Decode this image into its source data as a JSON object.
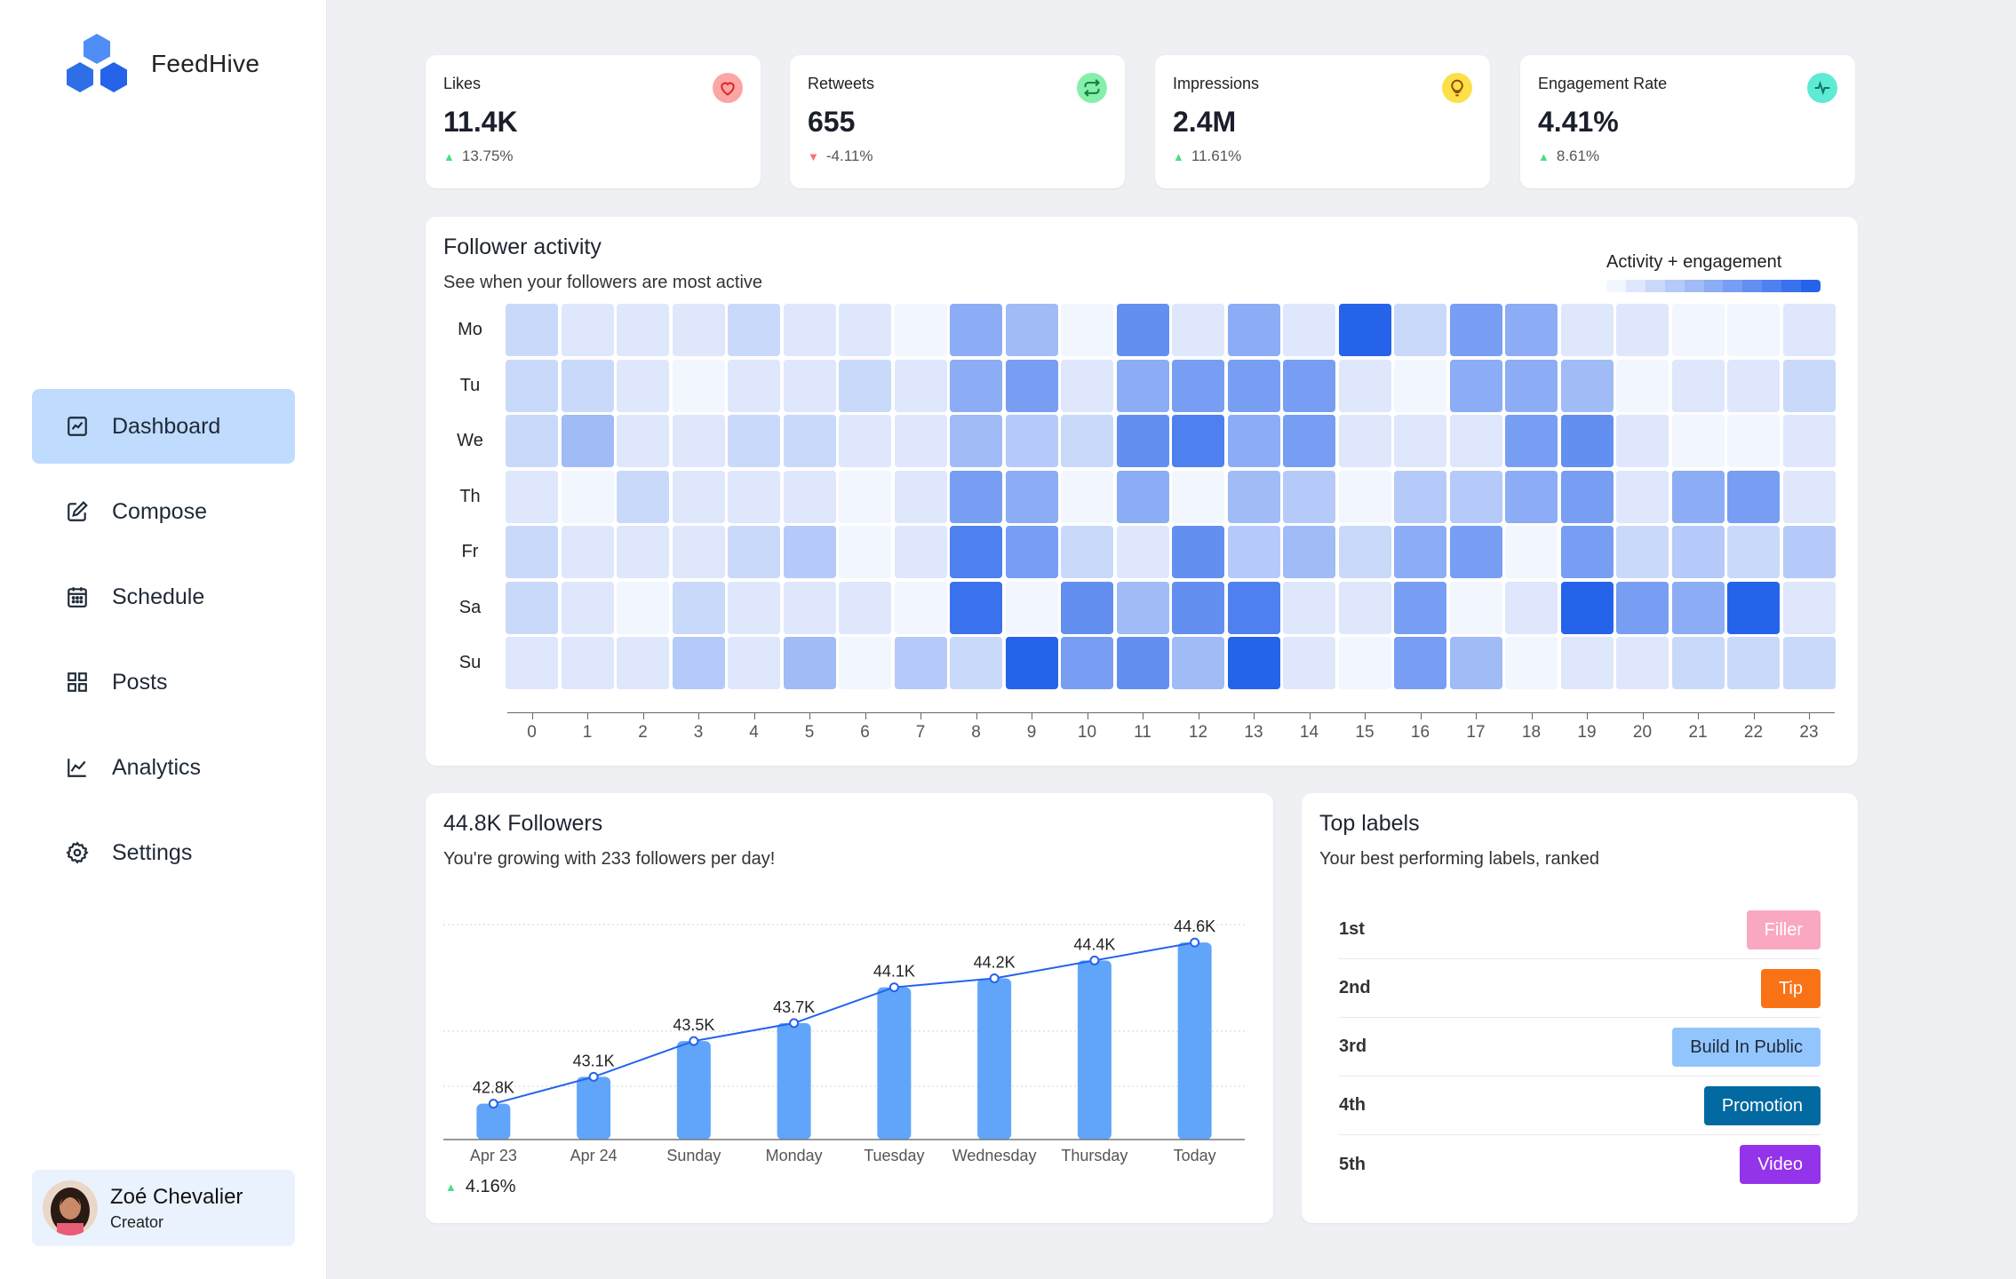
{
  "app": {
    "name": "FeedHive"
  },
  "sidebar": {
    "items": [
      {
        "label": "Dashboard",
        "icon": "chart-square-icon",
        "active": true
      },
      {
        "label": "Compose",
        "icon": "edit-icon",
        "active": false
      },
      {
        "label": "Schedule",
        "icon": "calendar-icon",
        "active": false
      },
      {
        "label": "Posts",
        "icon": "grid-icon",
        "active": false
      },
      {
        "label": "Analytics",
        "icon": "line-chart-icon",
        "active": false
      },
      {
        "label": "Settings",
        "icon": "gear-icon",
        "active": false
      }
    ],
    "user": {
      "name": "Zoé Chevalier",
      "role": "Creator"
    }
  },
  "stats": [
    {
      "label": "Likes",
      "value": "11.4K",
      "change": "13.75%",
      "direction": "up",
      "icon": "heart-icon",
      "icon_bg": "#fca5a5",
      "icon_color": "#dc2626"
    },
    {
      "label": "Retweets",
      "value": "655",
      "change": "-4.11%",
      "direction": "down",
      "icon": "retweet-icon",
      "icon_bg": "#86efac",
      "icon_color": "#15803d"
    },
    {
      "label": "Impressions",
      "value": "2.4M",
      "change": "11.61%",
      "direction": "up",
      "icon": "lightbulb-icon",
      "icon_bg": "#fde047",
      "icon_color": "#854d0e"
    },
    {
      "label": "Engagement Rate",
      "value": "4.41%",
      "change": "8.61%",
      "direction": "up",
      "icon": "activity-icon",
      "icon_bg": "#5eead4",
      "icon_color": "#0f766e"
    }
  ],
  "heatmap": {
    "title": "Follower activity",
    "subtitle": "See when your followers are most active",
    "legend_title": "Activity + engagement",
    "days": [
      "Mo",
      "Tu",
      "We",
      "Th",
      "Fr",
      "Sa",
      "Su"
    ],
    "hours": [
      "0",
      "1",
      "2",
      "3",
      "4",
      "5",
      "6",
      "7",
      "8",
      "9",
      "10",
      "11",
      "12",
      "13",
      "14",
      "15",
      "16",
      "17",
      "18",
      "19",
      "20",
      "21",
      "22",
      "23"
    ],
    "values": [
      [
        2,
        1,
        1,
        1,
        2,
        1,
        1,
        0,
        5,
        4,
        0,
        7,
        1,
        5,
        1,
        10,
        2,
        6,
        5,
        1,
        1,
        0,
        0,
        1
      ],
      [
        2,
        2,
        1,
        0,
        1,
        1,
        2,
        1,
        5,
        6,
        1,
        5,
        6,
        6,
        6,
        1,
        0,
        5,
        5,
        4,
        0,
        1,
        1,
        2
      ],
      [
        2,
        4,
        1,
        1,
        2,
        2,
        1,
        1,
        4,
        3,
        2,
        7,
        8,
        5,
        6,
        1,
        1,
        1,
        6,
        7,
        1,
        0,
        0,
        1
      ],
      [
        1,
        0,
        2,
        1,
        1,
        1,
        0,
        1,
        6,
        5,
        0,
        5,
        0,
        4,
        3,
        0,
        3,
        3,
        5,
        6,
        1,
        5,
        6,
        1
      ],
      [
        2,
        1,
        1,
        1,
        2,
        3,
        0,
        1,
        8,
        6,
        2,
        1,
        7,
        3,
        4,
        2,
        5,
        6,
        0,
        6,
        2,
        3,
        2,
        3
      ],
      [
        2,
        1,
        0,
        2,
        1,
        1,
        1,
        0,
        9,
        0,
        7,
        4,
        7,
        8,
        1,
        1,
        6,
        0,
        1,
        10,
        6,
        5,
        10,
        1
      ],
      [
        1,
        1,
        1,
        3,
        1,
        4,
        0,
        3,
        2,
        10,
        6,
        7,
        4,
        10,
        1,
        0,
        6,
        4,
        0,
        1,
        1,
        2,
        2,
        2
      ]
    ]
  },
  "followers": {
    "title": "44.8K Followers",
    "subtitle": "You're growing with 233 followers per day!",
    "change": "4.16%"
  },
  "chart_data": {
    "type": "bar",
    "categories": [
      "Apr 23",
      "Apr 24",
      "Sunday",
      "Monday",
      "Tuesday",
      "Wednesday",
      "Thursday",
      "Today"
    ],
    "values": [
      42.8,
      43.1,
      43.5,
      43.7,
      44.1,
      44.2,
      44.4,
      44.6
    ],
    "data_labels": [
      "42.8K",
      "43.1K",
      "43.5K",
      "43.7K",
      "44.1K",
      "44.2K",
      "44.4K",
      "44.6K"
    ],
    "ylim": [
      42.4,
      44.8
    ],
    "grid": true,
    "overlay_line": true
  },
  "top_labels": {
    "title": "Top labels",
    "subtitle": "Your best performing labels, ranked",
    "items": [
      {
        "rank": "1st",
        "label": "Filler",
        "bg": "#f9a8c0",
        "fg": "#ffffff"
      },
      {
        "rank": "2nd",
        "label": "Tip",
        "bg": "#f97316",
        "fg": "#ffffff"
      },
      {
        "rank": "3rd",
        "label": "Build In Public",
        "bg": "#93c5fd",
        "fg": "#1e293b"
      },
      {
        "rank": "4th",
        "label": "Promotion",
        "bg": "#0369a1",
        "fg": "#ffffff"
      },
      {
        "rank": "5th",
        "label": "Video",
        "bg": "#9333ea",
        "fg": "#ffffff"
      }
    ]
  },
  "colors": {
    "accent": "#2563eb",
    "bar": "#60a5fa",
    "up": "#4ade80",
    "down": "#f87171"
  }
}
